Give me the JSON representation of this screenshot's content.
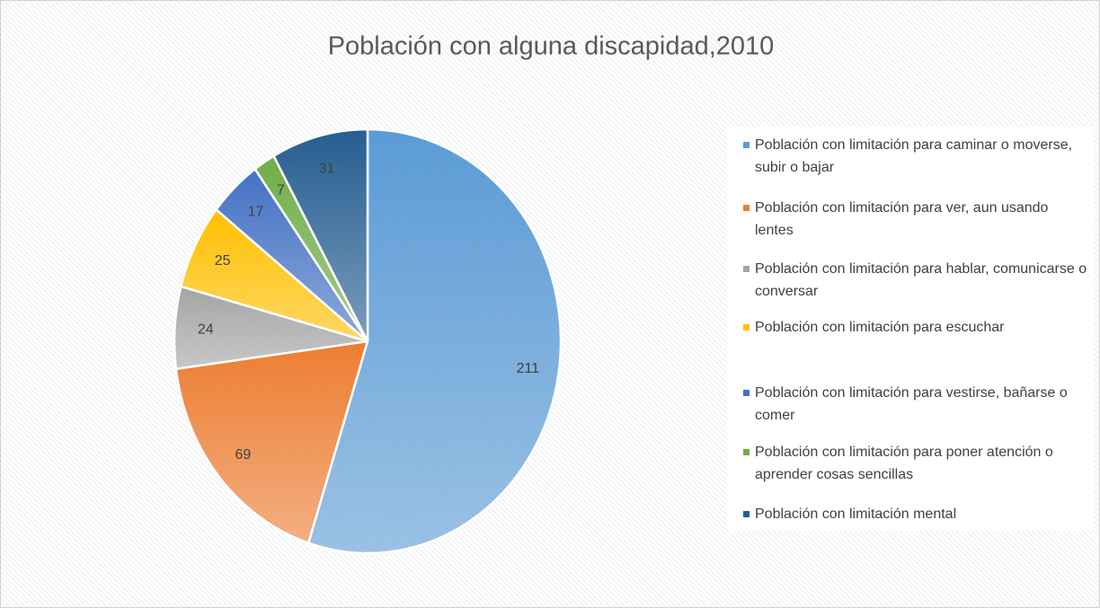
{
  "chart_data": {
    "type": "pie",
    "title": "Población con alguna discapidad,2010",
    "categories": [
      "Población con limitación para caminar o moverse, subir o bajar",
      "Población con limitación para ver, aun usando lentes",
      "Población con limitación para hablar, comunicarse o conversar",
      "Población con limitación para escuchar",
      "Población con limitación para vestirse, bañarse o comer",
      "Población con limitación para poner atención o aprender cosas sencillas",
      "Población con limitación mental"
    ],
    "values": [
      211,
      69,
      24,
      25,
      17,
      7,
      31
    ],
    "colors": [
      "#5b9bd5",
      "#ed7d31",
      "#a5a5a5",
      "#ffc000",
      "#4472c4",
      "#70ad47",
      "#255e91"
    ],
    "legend": "right"
  }
}
